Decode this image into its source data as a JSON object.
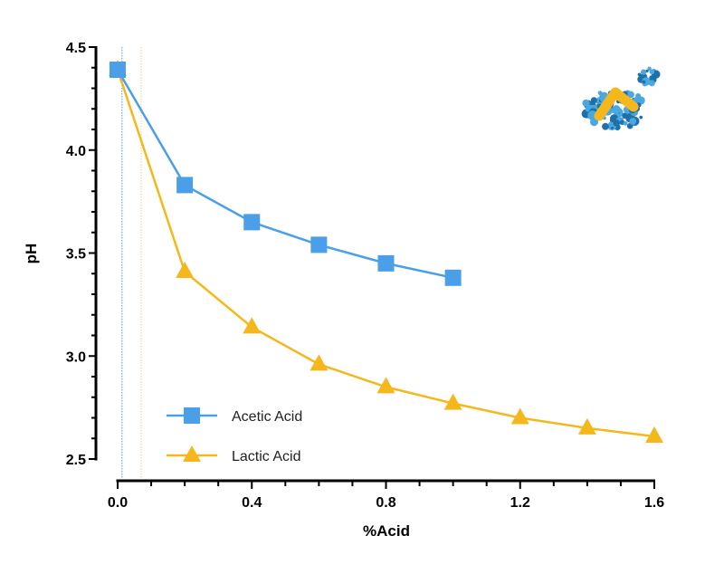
{
  "chart_data": {
    "type": "line",
    "xlabel": "%Acid",
    "ylabel": "pH",
    "xlim": [
      0,
      1.6
    ],
    "ylim": [
      2.5,
      4.5
    ],
    "xticks": [
      "0.0",
      "0.4",
      "0.8",
      "1.2",
      "1.6"
    ],
    "yticks": [
      "2.5",
      "3.0",
      "3.5",
      "4.0",
      "4.5"
    ],
    "grid": false,
    "legend_position": "bottom-left",
    "reference_lines": [
      {
        "x": 0.013,
        "color": "#4a9fe8"
      },
      {
        "x": 0.07,
        "color": "#f5c9a0"
      }
    ],
    "series": [
      {
        "name": "Acetic Acid",
        "color": "#4a9fe8",
        "marker": "square",
        "x": [
          0,
          0.2,
          0.4,
          0.6,
          0.8,
          1.0
        ],
        "y": [
          4.39,
          3.83,
          3.65,
          3.54,
          3.45,
          3.38
        ]
      },
      {
        "name": "Lactic Acid",
        "color": "#f5b81c",
        "marker": "triangle",
        "x": [
          0,
          0.2,
          0.4,
          0.6,
          0.8,
          1.0,
          1.2,
          1.4,
          1.6
        ],
        "y": [
          4.39,
          3.41,
          3.14,
          2.96,
          2.85,
          2.77,
          2.7,
          2.65,
          2.61
        ]
      }
    ]
  },
  "logo": {
    "name": "molecule-logo-icon",
    "colors": [
      "#1f6fa8",
      "#4aa8e0",
      "#f5b81c"
    ]
  }
}
